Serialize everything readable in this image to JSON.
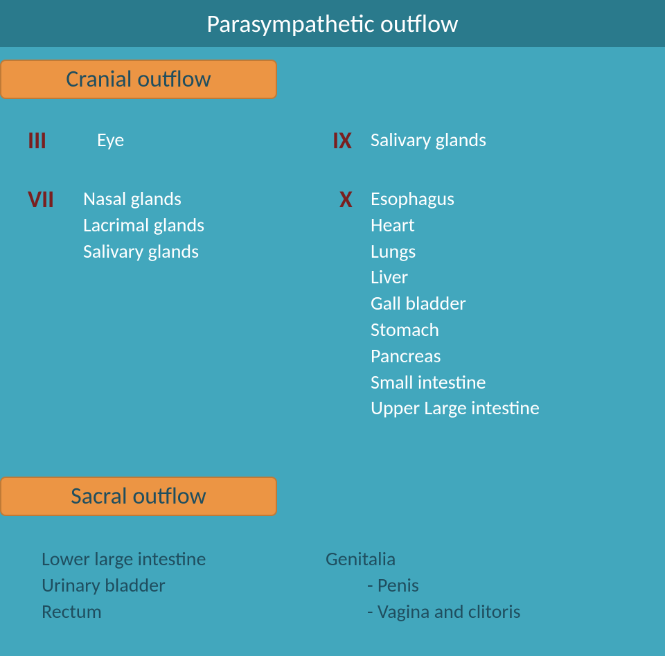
{
  "colors": {
    "header_bg": "#2a7a8c",
    "main_bg": "#42a7bd",
    "label_bg": "#ec9544",
    "label_border": "#c07a36",
    "title_text": "#ffffff",
    "label_text": "#1f4e5f",
    "numeral_text": "#7a1f1f",
    "body_text": "#ffffff",
    "sacral_text": "#1f4e5f"
  },
  "fonts": {
    "title_size": 36,
    "label_size": 34,
    "numeral_size": 34,
    "body_size": 28
  },
  "title": "Parasympathetic outflow",
  "sections": {
    "cranial": {
      "label": "Cranial outflow",
      "nerves": [
        {
          "numeral": "III",
          "targets": [
            "Eye"
          ]
        },
        {
          "numeral": "VII",
          "targets": [
            "Nasal glands",
            "Lacrimal glands",
            "Salivary glands"
          ]
        },
        {
          "numeral": "IX",
          "targets": [
            "Salivary glands"
          ]
        },
        {
          "numeral": "X",
          "targets": [
            "Esophagus",
            "Heart",
            "Lungs",
            "Liver",
            "Gall bladder",
            "Stomach",
            "Pancreas",
            "Small intestine",
            "Upper Large intestine"
          ]
        }
      ]
    },
    "sacral": {
      "label": "Sacral outflow",
      "left": [
        "Lower large intestine",
        "Urinary bladder",
        "Rectum"
      ],
      "right": [
        "Genitalia",
        "- Penis",
        "- Vagina and clitoris"
      ]
    }
  }
}
